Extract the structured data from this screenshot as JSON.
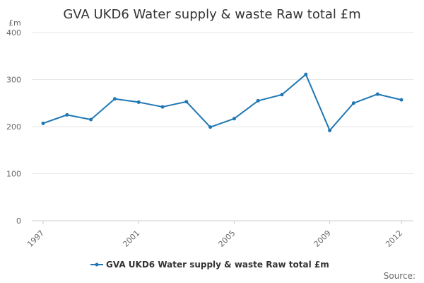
{
  "chart_data": {
    "type": "line",
    "title": "GVA UKD6 Water supply & waste Raw total £m",
    "ylabel": "£m",
    "xlabel": "",
    "x": [
      1997,
      1998,
      1999,
      2000,
      2001,
      2002,
      2003,
      2004,
      2005,
      2006,
      2007,
      2008,
      2009,
      2010,
      2011,
      2012
    ],
    "series": [
      {
        "name": "GVA UKD6 Water supply & waste Raw total £m",
        "values": [
          207,
          225,
          215,
          259,
          252,
          242,
          253,
          199,
          217,
          255,
          268,
          311,
          192,
          250,
          269,
          257
        ],
        "color": "#1f77b4"
      }
    ],
    "ylim": [
      0,
      400
    ],
    "yticks": [
      0,
      100,
      200,
      300,
      400
    ],
    "xticks": [
      1997,
      2001,
      2005,
      2009,
      2012
    ],
    "xlim": [
      1997,
      2012
    ],
    "legend_position": "bottom",
    "grid": true
  },
  "source_label": "Source:"
}
